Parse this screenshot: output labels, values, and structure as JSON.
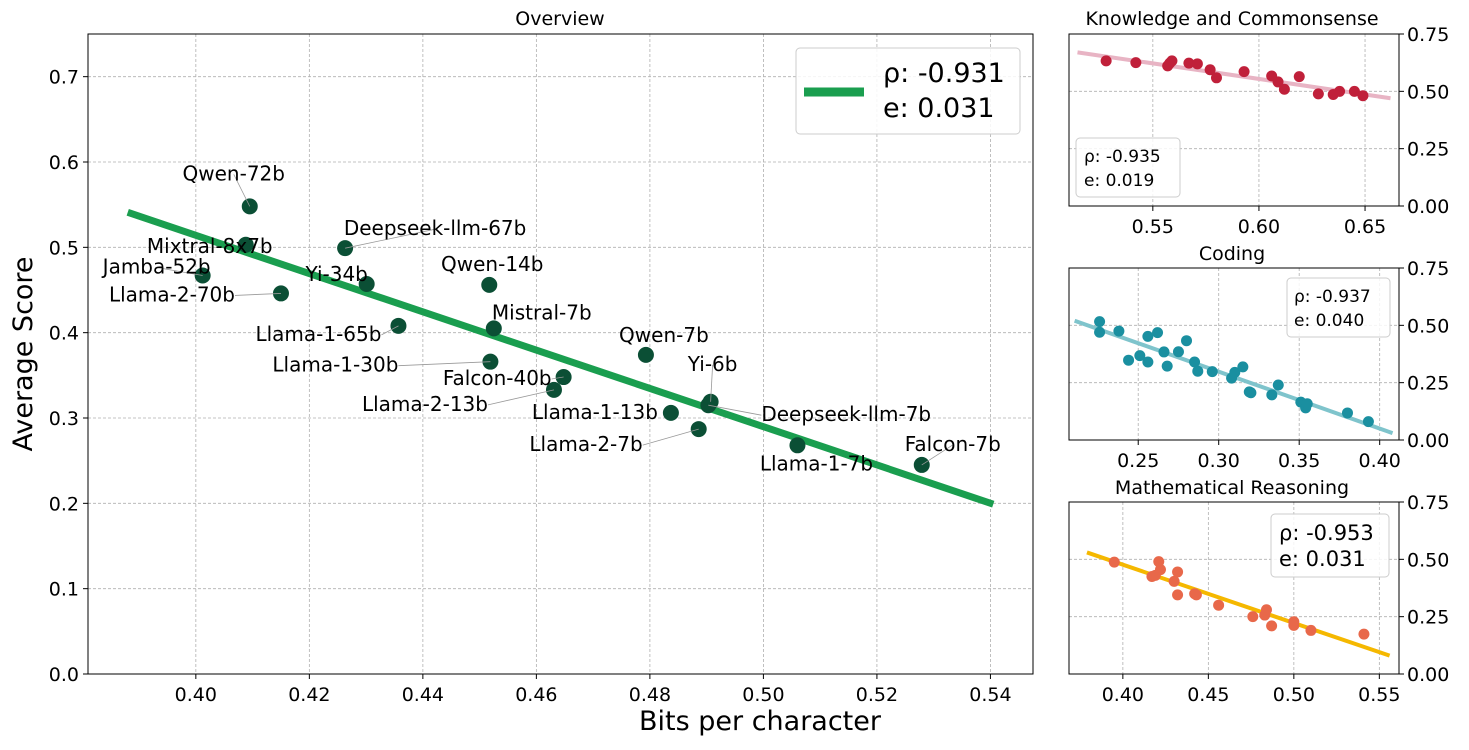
{
  "chart_data": [
    {
      "type": "scatter",
      "title": "Overview",
      "xlabel": "Bits per character",
      "ylabel": "Average Score",
      "xlim": [
        0.381,
        0.5475
      ],
      "ylim": [
        0.0,
        0.75
      ],
      "xticks": [
        "0.40",
        "0.42",
        "0.44",
        "0.46",
        "0.48",
        "0.50",
        "0.52",
        "0.54"
      ],
      "yticks": [
        "0.0",
        "0.1",
        "0.2",
        "0.3",
        "0.4",
        "0.5",
        "0.6",
        "0.7"
      ],
      "grid": true,
      "point_color": "#0b4f35",
      "fit_color": "#1a9e4f",
      "fit_line": {
        "x": [
          0.388,
          0.5405
        ],
        "y": [
          0.541,
          0.199
        ]
      },
      "legend": {
        "position": "top-right",
        "rho_label": "ρ: -0.931",
        "e_label": "e: 0.031"
      },
      "points": [
        {
          "name": "Qwen-72b",
          "x": 0.4095,
          "y": 0.548
        },
        {
          "name": "Mixtral-8x7b",
          "x": 0.4088,
          "y": 0.503
        },
        {
          "name": "Deepseek-llm-67b",
          "x": 0.4263,
          "y": 0.499
        },
        {
          "name": "Jamba-52b",
          "x": 0.4012,
          "y": 0.467
        },
        {
          "name": "Llama-2-70b",
          "x": 0.415,
          "y": 0.446
        },
        {
          "name": "Yi-34b",
          "x": 0.4301,
          "y": 0.457
        },
        {
          "name": "Qwen-14b",
          "x": 0.4517,
          "y": 0.456
        },
        {
          "name": "Llama-1-65b",
          "x": 0.4357,
          "y": 0.408
        },
        {
          "name": "Mistral-7b",
          "x": 0.4525,
          "y": 0.405
        },
        {
          "name": "Qwen-7b",
          "x": 0.4793,
          "y": 0.374
        },
        {
          "name": "Llama-1-30b",
          "x": 0.4519,
          "y": 0.366
        },
        {
          "name": "Falcon-40b",
          "x": 0.4648,
          "y": 0.348
        },
        {
          "name": "Llama-2-13b",
          "x": 0.4631,
          "y": 0.333
        },
        {
          "name": "Yi-6b",
          "x": 0.4907,
          "y": 0.319
        },
        {
          "name": "Deepseek-llm-7b",
          "x": 0.4903,
          "y": 0.315
        },
        {
          "name": "Llama-1-13b",
          "x": 0.4837,
          "y": 0.306
        },
        {
          "name": "Llama-2-7b",
          "x": 0.4886,
          "y": 0.287
        },
        {
          "name": "Llama-1-7b",
          "x": 0.506,
          "y": 0.268
        },
        {
          "name": "Falcon-7b",
          "x": 0.5279,
          "y": 0.245
        }
      ]
    },
    {
      "type": "scatter",
      "title": "Knowledge and Commonsense",
      "xlim": [
        0.5105,
        0.666
      ],
      "ylim": [
        0.0,
        0.75
      ],
      "xticks": [
        "0.55",
        "0.60",
        "0.65"
      ],
      "yticks": [
        "0.00",
        "0.25",
        "0.50",
        "0.75"
      ],
      "grid": true,
      "point_color": "#c0203a",
      "fit_color": "#e8b4c4",
      "fit_line": {
        "x": [
          0.5145,
          0.662
        ],
        "y": [
          0.67,
          0.47
        ]
      },
      "legend": {
        "position": "bottom-left",
        "rho_label": "ρ: -0.935",
        "e_label": "e: 0.019"
      },
      "points": [
        {
          "x": 0.528,
          "y": 0.633
        },
        {
          "x": 0.542,
          "y": 0.625
        },
        {
          "x": 0.557,
          "y": 0.611
        },
        {
          "x": 0.558,
          "y": 0.623
        },
        {
          "x": 0.559,
          "y": 0.633
        },
        {
          "x": 0.567,
          "y": 0.623
        },
        {
          "x": 0.571,
          "y": 0.62
        },
        {
          "x": 0.577,
          "y": 0.594
        },
        {
          "x": 0.58,
          "y": 0.559
        },
        {
          "x": 0.593,
          "y": 0.586
        },
        {
          "x": 0.606,
          "y": 0.567
        },
        {
          "x": 0.609,
          "y": 0.541
        },
        {
          "x": 0.612,
          "y": 0.509
        },
        {
          "x": 0.619,
          "y": 0.564
        },
        {
          "x": 0.628,
          "y": 0.489
        },
        {
          "x": 0.635,
          "y": 0.486
        },
        {
          "x": 0.638,
          "y": 0.5
        },
        {
          "x": 0.645,
          "y": 0.5
        },
        {
          "x": 0.649,
          "y": 0.481
        }
      ]
    },
    {
      "type": "scatter",
      "title": "Coding",
      "xlim": [
        0.207,
        0.412
      ],
      "ylim": [
        0.0,
        0.75
      ],
      "xticks": [
        "0.20",
        "0.25",
        "0.30",
        "0.35",
        "0.40"
      ],
      "yticks": [
        "0.00",
        "0.25",
        "0.50",
        "0.75"
      ],
      "grid": true,
      "point_color": "#1a8fa0",
      "fit_color": "#7fc4cc",
      "fit_line": {
        "x": [
          0.2105,
          0.408
        ],
        "y": [
          0.52,
          0.03
        ]
      },
      "legend": {
        "position": "top-right",
        "rho_label": "ρ: -0.937",
        "e_label": "e: 0.040"
      },
      "points": [
        {
          "x": 0.226,
          "y": 0.516
        },
        {
          "x": 0.226,
          "y": 0.47
        },
        {
          "x": 0.238,
          "y": 0.475
        },
        {
          "x": 0.244,
          "y": 0.348
        },
        {
          "x": 0.251,
          "y": 0.368
        },
        {
          "x": 0.256,
          "y": 0.452
        },
        {
          "x": 0.256,
          "y": 0.34
        },
        {
          "x": 0.262,
          "y": 0.468
        },
        {
          "x": 0.266,
          "y": 0.384
        },
        {
          "x": 0.268,
          "y": 0.322
        },
        {
          "x": 0.275,
          "y": 0.385
        },
        {
          "x": 0.28,
          "y": 0.433
        },
        {
          "x": 0.285,
          "y": 0.34
        },
        {
          "x": 0.287,
          "y": 0.3
        },
        {
          "x": 0.296,
          "y": 0.298
        },
        {
          "x": 0.308,
          "y": 0.27
        },
        {
          "x": 0.31,
          "y": 0.295
        },
        {
          "x": 0.315,
          "y": 0.319
        },
        {
          "x": 0.319,
          "y": 0.21
        },
        {
          "x": 0.32,
          "y": 0.206
        },
        {
          "x": 0.333,
          "y": 0.197
        },
        {
          "x": 0.337,
          "y": 0.24
        },
        {
          "x": 0.351,
          "y": 0.165
        },
        {
          "x": 0.354,
          "y": 0.14
        },
        {
          "x": 0.355,
          "y": 0.158
        },
        {
          "x": 0.38,
          "y": 0.118
        },
        {
          "x": 0.393,
          "y": 0.08
        }
      ]
    },
    {
      "type": "scatter",
      "title": "Mathematical Reasoning",
      "xlim": [
        0.3685,
        0.5615
      ],
      "ylim": [
        0.0,
        0.75
      ],
      "xticks": [
        "0.40",
        "0.45",
        "0.50",
        "0.55"
      ],
      "yticks": [
        "0.00",
        "0.25",
        "0.50",
        "0.75"
      ],
      "grid": true,
      "point_color": "#e8684a",
      "fit_color": "#f5b800",
      "fit_line": {
        "x": [
          0.379,
          0.556
        ],
        "y": [
          0.53,
          0.08
        ]
      },
      "legend": {
        "position": "top-right",
        "rho_label": "ρ: -0.953",
        "e_label": "e: 0.031"
      },
      "points": [
        {
          "x": 0.395,
          "y": 0.488
        },
        {
          "x": 0.417,
          "y": 0.425
        },
        {
          "x": 0.419,
          "y": 0.43
        },
        {
          "x": 0.421,
          "y": 0.49
        },
        {
          "x": 0.422,
          "y": 0.455
        },
        {
          "x": 0.43,
          "y": 0.404
        },
        {
          "x": 0.432,
          "y": 0.445
        },
        {
          "x": 0.432,
          "y": 0.345
        },
        {
          "x": 0.442,
          "y": 0.35
        },
        {
          "x": 0.443,
          "y": 0.345
        },
        {
          "x": 0.456,
          "y": 0.3
        },
        {
          "x": 0.476,
          "y": 0.25
        },
        {
          "x": 0.483,
          "y": 0.257
        },
        {
          "x": 0.484,
          "y": 0.28
        },
        {
          "x": 0.487,
          "y": 0.21
        },
        {
          "x": 0.5,
          "y": 0.212
        },
        {
          "x": 0.5,
          "y": 0.228
        },
        {
          "x": 0.51,
          "y": 0.19
        },
        {
          "x": 0.541,
          "y": 0.174
        }
      ]
    }
  ]
}
